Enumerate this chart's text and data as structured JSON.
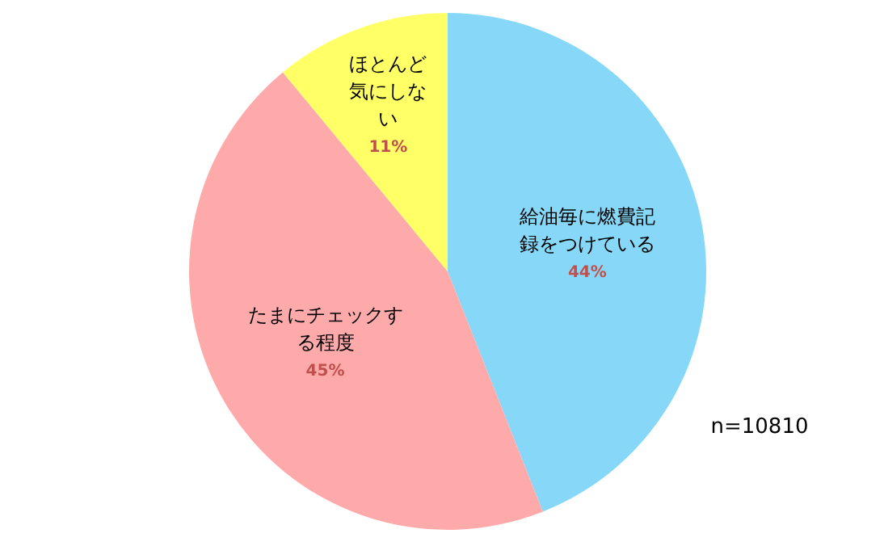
{
  "chart_data": {
    "type": "pie",
    "categories": [
      "給油毎に燃費記録をつけている",
      "たまにチェックする程度",
      "ほとんど気にしない"
    ],
    "values": [
      44,
      45,
      11
    ],
    "value_labels": [
      "44%",
      "45%",
      "11%"
    ],
    "colors": [
      "#87d8f8",
      "#ffaaaa",
      "#ffff66"
    ],
    "annotations": [
      "n=10810"
    ]
  }
}
